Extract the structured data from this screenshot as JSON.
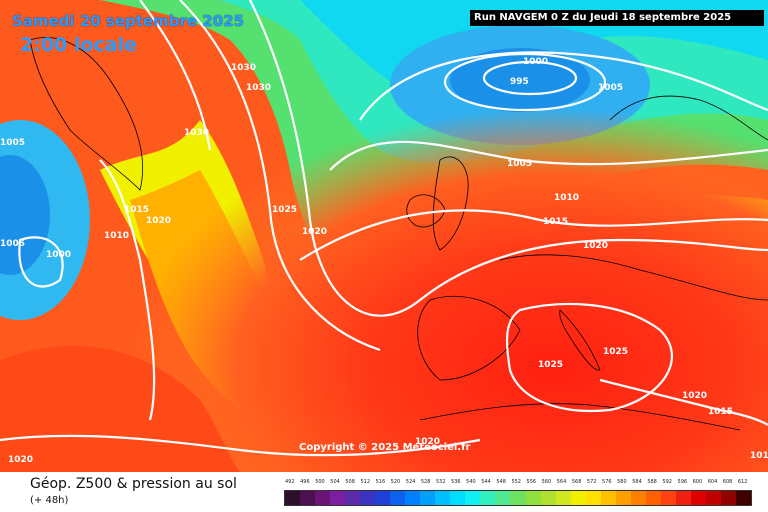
{
  "header": {
    "date": "Samedi 20 septembre 2025",
    "time": "2:00 locale",
    "run": "Run NAVGEM 0 Z du Jeudi 18 septembre 2025"
  },
  "map": {
    "copyright": "Copyright © 2025 Meteociel.fr",
    "pressure_labels": [
      "1030",
      "1030",
      "1030",
      "1005",
      "1015",
      "1020",
      "1010",
      "1005",
      "1000",
      "1025",
      "1020",
      "1000",
      "995",
      "1005",
      "1005",
      "1010",
      "1015",
      "1020",
      "1025",
      "1025",
      "1020",
      "1015",
      "1020",
      "1020",
      "1010"
    ]
  },
  "footer": {
    "title": "Géop. Z500 & pression au sol",
    "subtitle": "(+ 48h)"
  },
  "legend": {
    "scale_values": [
      "492",
      "496",
      "500",
      "504",
      "508",
      "512",
      "516",
      "520",
      "524",
      "528",
      "532",
      "536",
      "540",
      "544",
      "548",
      "552",
      "556",
      "560",
      "564",
      "568",
      "572",
      "576",
      "580",
      "584",
      "588",
      "592",
      "596",
      "600",
      "604",
      "608",
      "612"
    ],
    "scale_colors": [
      "#2b0f2b",
      "#4a1050",
      "#6a1478",
      "#7c1ea0",
      "#5a2aa8",
      "#3a32c0",
      "#1e40d8",
      "#1060f0",
      "#0080ff",
      "#00a0ff",
      "#00c0ff",
      "#00ddff",
      "#10f0f0",
      "#30f0c0",
      "#50e890",
      "#70e060",
      "#90e040",
      "#b0e030",
      "#d0e820",
      "#f0f000",
      "#ffe000",
      "#ffc000",
      "#ffa000",
      "#ff8000",
      "#ff6000",
      "#ff4010",
      "#f02010",
      "#e00000",
      "#c00000",
      "#900000",
      "#400000"
    ]
  }
}
